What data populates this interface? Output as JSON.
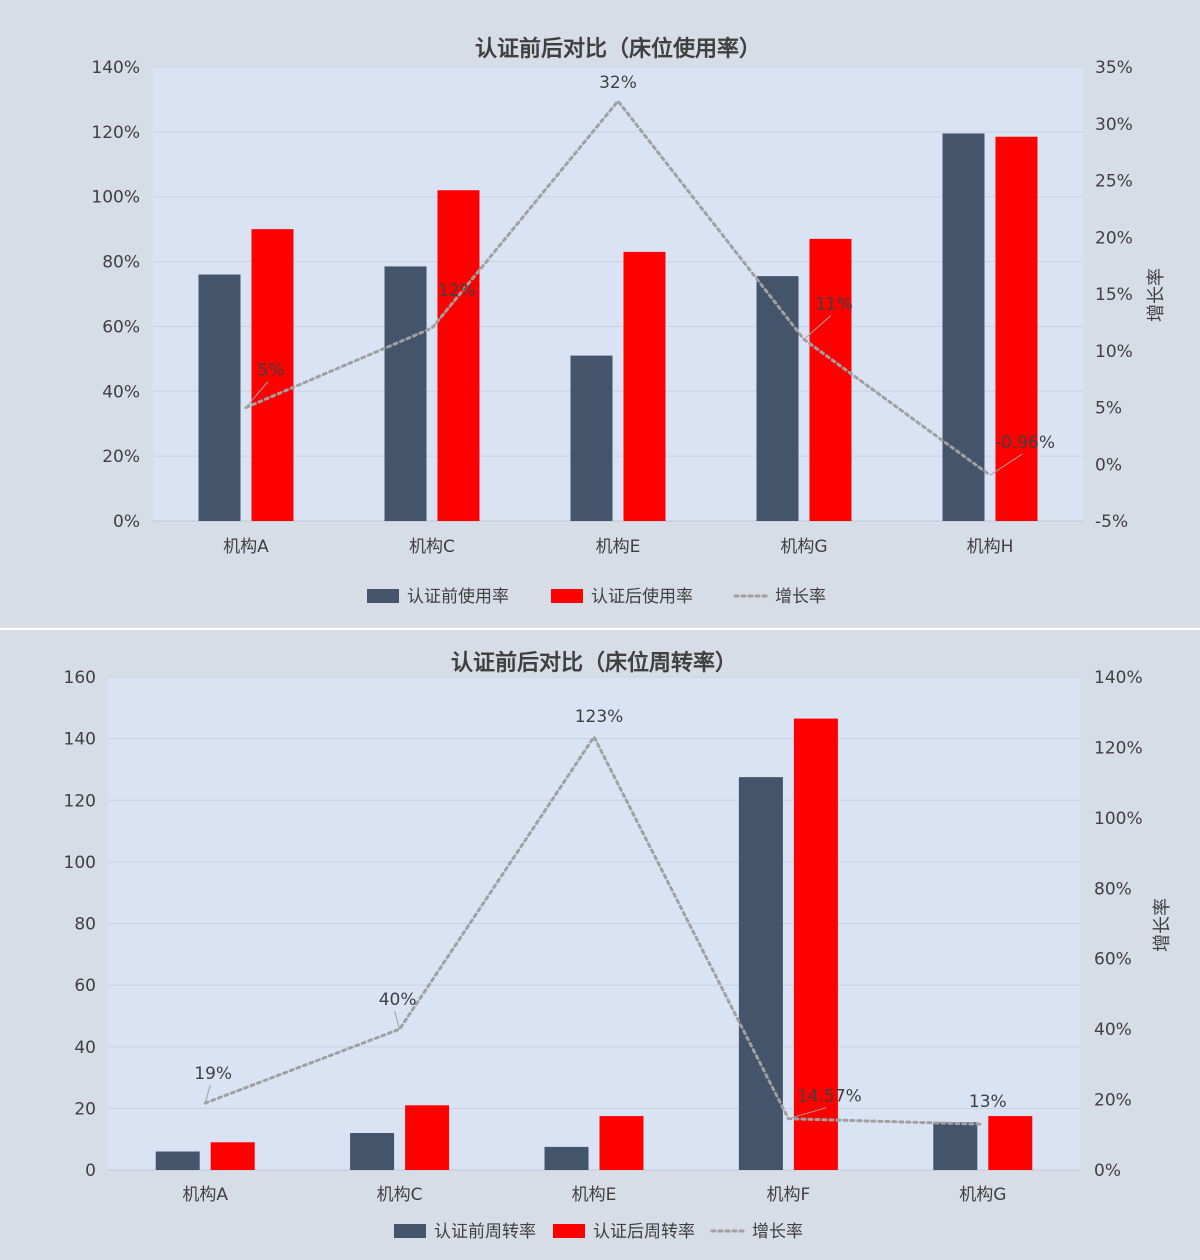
{
  "chart_data": [
    {
      "type": "bar",
      "title": "认证前后对比（床位使用率）",
      "categories": [
        "机构A",
        "机构C",
        "机构E",
        "机构G",
        "机构H"
      ],
      "series": [
        {
          "name": "认证前使用率",
          "kind": "bar",
          "axis": "left",
          "color": "#44546a",
          "values": [
            0.76,
            0.785,
            0.51,
            0.755,
            1.195
          ]
        },
        {
          "name": "认证后使用率",
          "kind": "bar",
          "axis": "left",
          "color": "#ff0000",
          "values": [
            0.9,
            1.02,
            0.83,
            0.87,
            1.185
          ]
        },
        {
          "name": "增长率",
          "kind": "line",
          "axis": "right",
          "color": "#a0a0a0",
          "values": [
            0.05,
            0.12,
            0.32,
            0.11,
            -0.0096
          ],
          "labels": [
            "5%",
            "12%",
            "32%",
            "11%",
            "-0.96%"
          ]
        }
      ],
      "y_left": {
        "min": 0,
        "max": 1.4,
        "ticks": [
          "0%",
          "20%",
          "40%",
          "60%",
          "80%",
          "100%",
          "120%",
          "140%"
        ]
      },
      "y_right": {
        "min": -0.05,
        "max": 0.35,
        "label": "增长率",
        "ticks": [
          "-5%",
          "0%",
          "5%",
          "10%",
          "15%",
          "20%",
          "25%",
          "30%",
          "35%"
        ]
      },
      "legend": [
        {
          "label": "认证前使用率",
          "kind": "bar",
          "color": "#44546a"
        },
        {
          "label": "认证后使用率",
          "kind": "bar",
          "color": "#ff0000"
        },
        {
          "label": "增长率",
          "kind": "line",
          "color": "#a0a0a0"
        }
      ],
      "legend_position": "bottom",
      "grid": true
    },
    {
      "type": "bar",
      "title": "认证前后对比（床位周转率）",
      "categories": [
        "机构A",
        "机构C",
        "机构E",
        "机构F",
        "机构G"
      ],
      "series": [
        {
          "name": "认证前周转率",
          "kind": "bar",
          "axis": "left",
          "color": "#44546a",
          "values": [
            6,
            12,
            7.5,
            127.5,
            15.5
          ]
        },
        {
          "name": "认证后周转率",
          "kind": "bar",
          "axis": "left",
          "color": "#ff0000",
          "values": [
            9,
            21,
            17.5,
            146.5,
            17.5
          ]
        },
        {
          "name": "增长率",
          "kind": "line",
          "axis": "right",
          "color": "#a0a0a0",
          "values": [
            0.19,
            0.4,
            1.23,
            0.1457,
            0.13
          ],
          "labels": [
            "19%",
            "40%",
            "123%",
            "14.57%",
            "13%"
          ]
        }
      ],
      "y_left": {
        "min": 0,
        "max": 160,
        "ticks": [
          "0",
          "20",
          "40",
          "60",
          "80",
          "100",
          "120",
          "140",
          "160"
        ]
      },
      "y_right": {
        "min": 0,
        "max": 1.4,
        "label": "增长率",
        "ticks": [
          "0%",
          "20%",
          "40%",
          "60%",
          "80%",
          "100%",
          "120%",
          "140%"
        ]
      },
      "legend": [
        {
          "label": "认证前周转率",
          "kind": "bar",
          "color": "#44546a"
        },
        {
          "label": "认证后周转率",
          "kind": "bar",
          "color": "#ff0000"
        },
        {
          "label": "增长率",
          "kind": "line",
          "color": "#a0a0a0"
        }
      ],
      "legend_position": "bottom",
      "grid": true
    }
  ]
}
